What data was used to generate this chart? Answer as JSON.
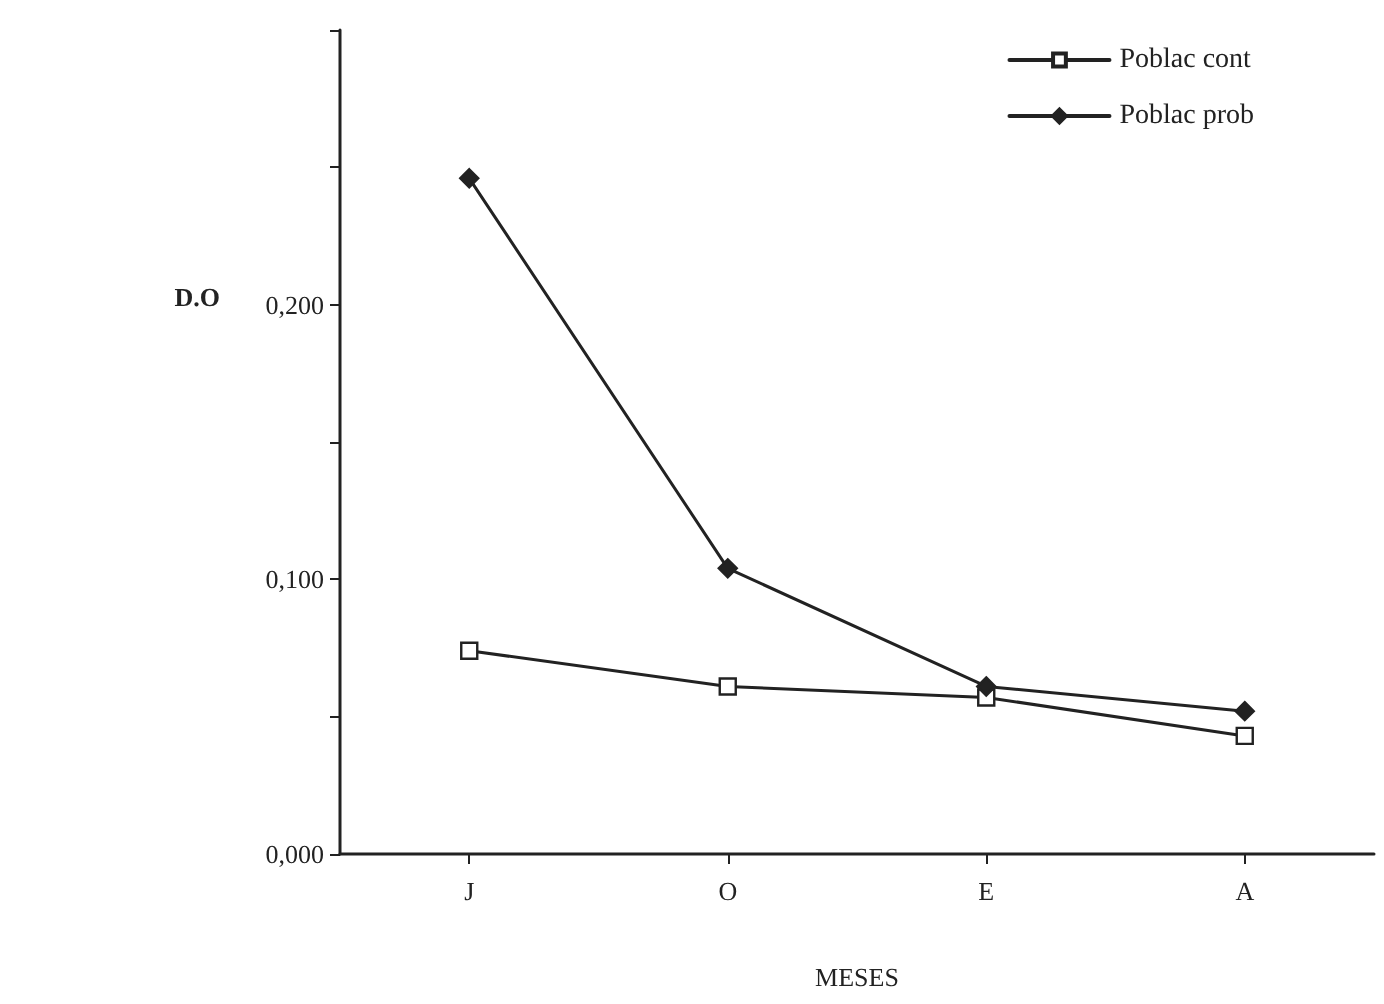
{
  "chart_data": {
    "type": "line",
    "xlabel": "MESES",
    "ylabel": "D.O",
    "categories": [
      "J",
      "O",
      "E",
      "A"
    ],
    "series": [
      {
        "name": "Poblac cont",
        "color": "#222222",
        "marker": "square",
        "values": [
          0.074,
          0.061,
          0.057,
          0.043
        ]
      },
      {
        "name": "Poblac prob",
        "color": "#222222",
        "marker": "diamond",
        "values": [
          0.246,
          0.104,
          0.061,
          0.052
        ]
      }
    ],
    "ylim": [
      0,
      0.3
    ],
    "yticks": [
      {
        "value": 0,
        "label": "0,000"
      },
      {
        "value": 0.05,
        "label": null
      },
      {
        "value": 0.1,
        "label": "0,100"
      },
      {
        "value": 0.15,
        "label": null
      },
      {
        "value": 0.2,
        "label": "0,200"
      },
      {
        "value": 0.25,
        "label": null
      },
      {
        "value": 0.3,
        "label": null
      }
    ],
    "grid": false,
    "legend": "top right",
    "line_style": "solid"
  }
}
